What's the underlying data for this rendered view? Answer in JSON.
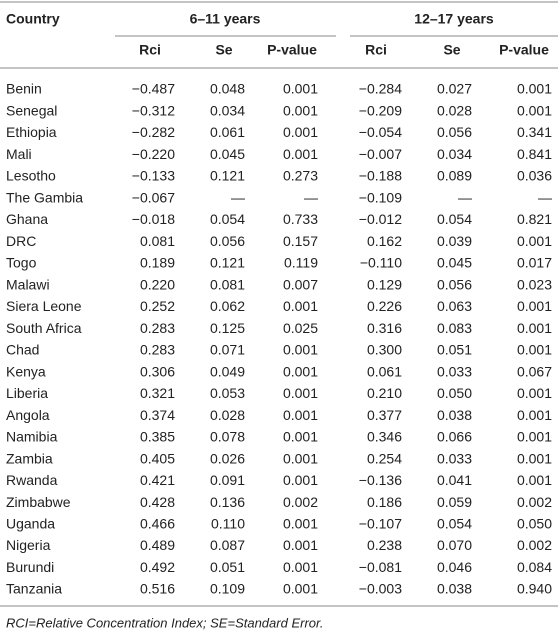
{
  "table": {
    "group_headers": [
      "Country",
      "6–11 years",
      "12–17 years"
    ],
    "columns": [
      "Rci",
      "Se",
      "P-value",
      "Rci",
      "Se",
      "P-value"
    ],
    "rows": [
      [
        "Benin",
        "−0.487",
        "0.048",
        "0.001",
        "−0.284",
        "0.027",
        "0.001"
      ],
      [
        "Senegal",
        "−0.312",
        "0.034",
        "0.001",
        "−0.209",
        "0.028",
        "0.001"
      ],
      [
        "Ethiopia",
        "−0.282",
        "0.061",
        "0.001",
        "−0.054",
        "0.056",
        "0.341"
      ],
      [
        "Mali",
        "−0.220",
        "0.045",
        "0.001",
        "−0.007",
        "0.034",
        "0.841"
      ],
      [
        "Lesotho",
        "−0.133",
        "0.121",
        "0.273",
        "−0.188",
        "0.089",
        "0.036"
      ],
      [
        "The Gambia",
        "−0.067",
        "—",
        "—",
        "−0.109",
        "—",
        "—"
      ],
      [
        "Ghana",
        "−0.018",
        "0.054",
        "0.733",
        "−0.012",
        "0.054",
        "0.821"
      ],
      [
        "DRC",
        "0.081",
        "0.056",
        "0.157",
        "0.162",
        "0.039",
        "0.001"
      ],
      [
        "Togo",
        "0.189",
        "0.121",
        "0.119",
        "−0.110",
        "0.045",
        "0.017"
      ],
      [
        "Malawi",
        "0.220",
        "0.081",
        "0.007",
        "0.129",
        "0.056",
        "0.023"
      ],
      [
        "Siera Leone",
        "0.252",
        "0.062",
        "0.001",
        "0.226",
        "0.063",
        "0.001"
      ],
      [
        "South Africa",
        "0.283",
        "0.125",
        "0.025",
        "0.316",
        "0.083",
        "0.001"
      ],
      [
        "Chad",
        "0.283",
        "0.071",
        "0.001",
        "0.300",
        "0.051",
        "0.001"
      ],
      [
        "Kenya",
        "0.306",
        "0.049",
        "0.001",
        "0.061",
        "0.033",
        "0.067"
      ],
      [
        "Liberia",
        "0.321",
        "0.053",
        "0.001",
        "0.210",
        "0.050",
        "0.001"
      ],
      [
        "Angola",
        "0.374",
        "0.028",
        "0.001",
        "0.377",
        "0.038",
        "0.001"
      ],
      [
        "Namibia",
        "0.385",
        "0.078",
        "0.001",
        "0.346",
        "0.066",
        "0.001"
      ],
      [
        "Zambia",
        "0.405",
        "0.026",
        "0.001",
        "0.254",
        "0.033",
        "0.001"
      ],
      [
        "Rwanda",
        "0.421",
        "0.091",
        "0.001",
        "−0.136",
        "0.041",
        "0.001"
      ],
      [
        "Zimbabwe",
        "0.428",
        "0.136",
        "0.002",
        "0.186",
        "0.059",
        "0.002"
      ],
      [
        "Uganda",
        "0.466",
        "0.110",
        "0.001",
        "−0.107",
        "0.054",
        "0.050"
      ],
      [
        "Nigeria",
        "0.489",
        "0.087",
        "0.001",
        "0.238",
        "0.070",
        "0.002"
      ],
      [
        "Burundi",
        "0.492",
        "0.051",
        "0.001",
        "−0.081",
        "0.046",
        "0.084"
      ],
      [
        "Tanzania",
        "0.516",
        "0.109",
        "0.001",
        "−0.003",
        "0.038",
        "0.940"
      ]
    ],
    "footnote": "RCI=Relative Concentration Index; SE=Standard Error."
  }
}
